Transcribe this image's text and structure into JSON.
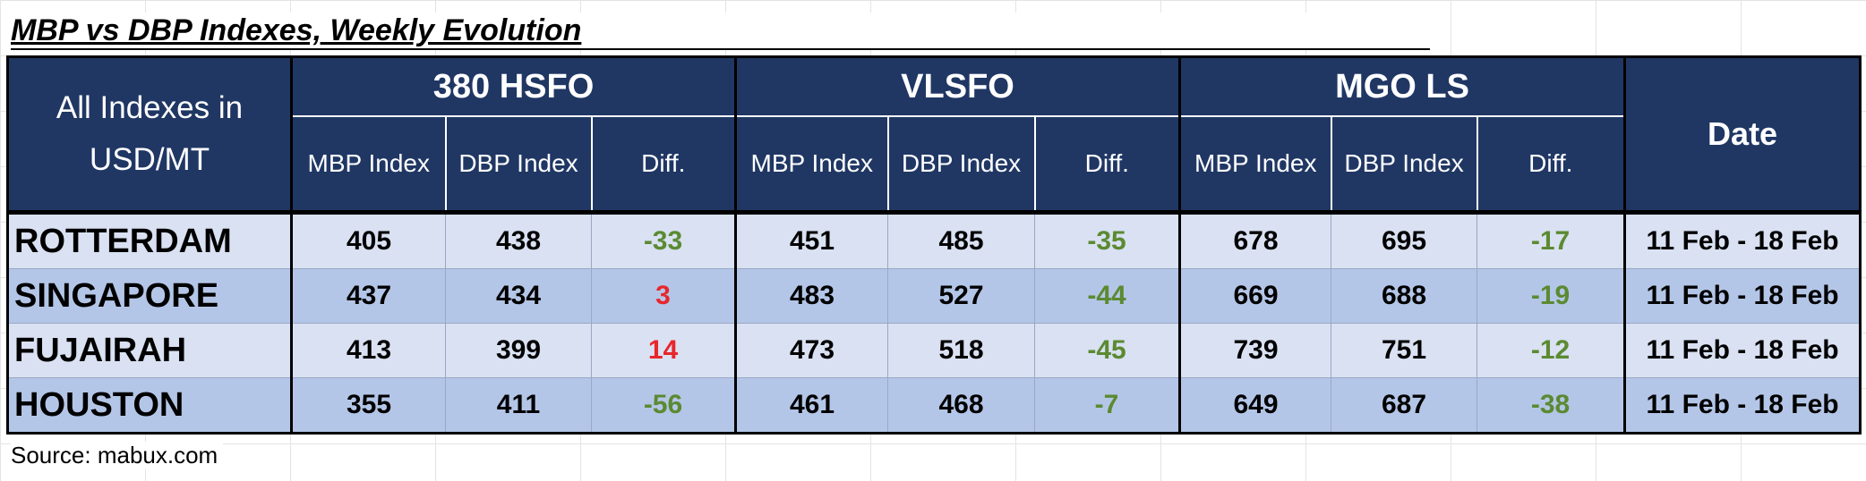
{
  "title": "MBP vs DBP Indexes, Weekly Evolution",
  "table": {
    "corner": "All Indexes in USD/MT",
    "groups": [
      "380 HSFO",
      "VLSFO",
      "MGO LS"
    ],
    "subheaders": [
      "MBP Index",
      "DBP Index",
      "Diff."
    ],
    "date_header": "Date",
    "diff_colors": {
      "negative": "#5b8a32",
      "positive": "#e8262b"
    },
    "rows": [
      {
        "port": "ROTTERDAM",
        "values": [
          405,
          438,
          -33,
          451,
          485,
          -35,
          678,
          695,
          -17
        ],
        "date": "11 Feb - 18 Feb"
      },
      {
        "port": "SINGAPORE",
        "values": [
          437,
          434,
          3,
          483,
          527,
          -44,
          669,
          688,
          -19
        ],
        "date": "11 Feb - 18 Feb"
      },
      {
        "port": "FUJAIRAH",
        "values": [
          413,
          399,
          14,
          473,
          518,
          -45,
          739,
          751,
          -12
        ],
        "date": "11 Feb - 18 Feb"
      },
      {
        "port": "HOUSTON",
        "values": [
          355,
          411,
          -56,
          461,
          468,
          -7,
          649,
          687,
          -38
        ],
        "date": "11 Feb - 18 Feb"
      }
    ]
  },
  "source": "Source: mabux.com"
}
